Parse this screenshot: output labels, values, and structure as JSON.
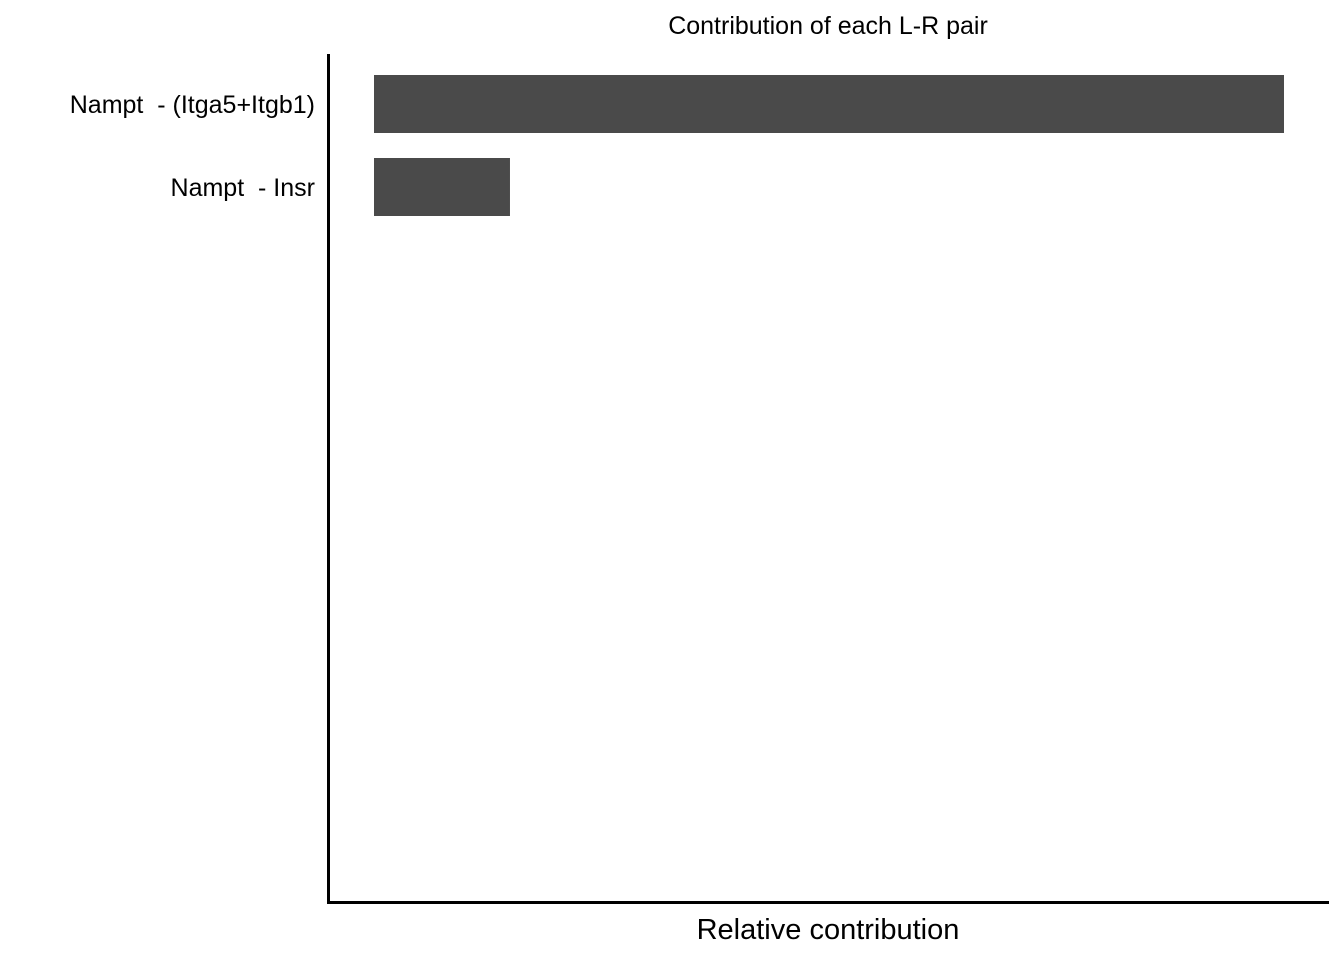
{
  "chart_data": {
    "type": "bar",
    "orientation": "horizontal",
    "title": "Contribution of each L-R pair",
    "xlabel": "Relative contribution",
    "ylabel": "",
    "categories": [
      "Nampt  - (Itga5+Itgb1)",
      "Nampt  - Insr"
    ],
    "values": [
      0.87,
      0.13
    ],
    "xlim": [
      0,
      0.87
    ],
    "grid": false,
    "legend": "none",
    "bar_color": "#4a4a4a",
    "axis_color": "#000000"
  }
}
